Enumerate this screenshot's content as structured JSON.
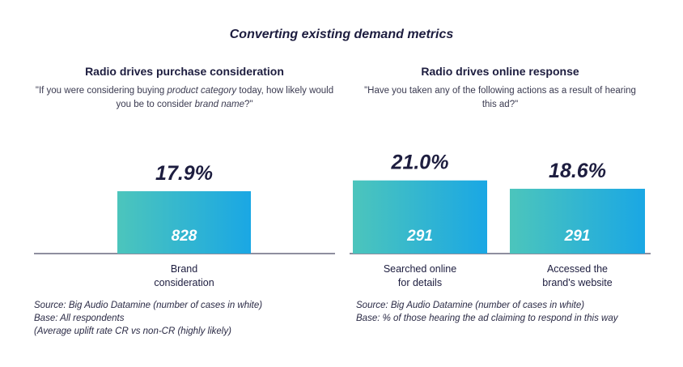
{
  "title": "Converting existing demand metrics",
  "colors": {
    "bar_start": "#4cc5bc",
    "bar_end": "#1aa7e4",
    "text_dark": "#1d1d3f"
  },
  "left_panel": {
    "title": "Radio drives purchase consideration",
    "question_parts": [
      {
        "text": "\"If you were considering buying ",
        "italic": false
      },
      {
        "text": "product category",
        "italic": true
      },
      {
        "text": " today, how likely would you be to consider ",
        "italic": false
      },
      {
        "text": "brand name",
        "italic": true
      },
      {
        "text": "?\"",
        "italic": false
      }
    ],
    "footnotes": [
      "Source: Big Audio Datamine (number of cases in white)",
      "Base: All respondents",
      "(Average uplift rate CR vs non-CR (highly likely)"
    ]
  },
  "right_panel": {
    "title": "Radio drives online response",
    "question": "\"Have you taken any of the following actions as a result of hearing this ad?\"",
    "footnotes": [
      "Source: Big Audio Datamine (number of cases in white)",
      "Base: % of those hearing the ad claiming to respond in this way"
    ]
  },
  "chart_data": [
    {
      "type": "bar",
      "title": "Radio drives purchase consideration",
      "categories": [
        "Brand consideration"
      ],
      "category_lines": [
        [
          "Brand",
          "consideration"
        ]
      ],
      "values": [
        17.9
      ],
      "value_labels": [
        "17.9%"
      ],
      "cases": [
        "828"
      ],
      "ylim": [
        0,
        25
      ],
      "grid": false,
      "legend": "none"
    },
    {
      "type": "bar",
      "title": "Radio drives online response",
      "categories": [
        "Searched online for details",
        "Accessed the brand's website"
      ],
      "category_lines": [
        [
          "Searched online",
          "for details"
        ],
        [
          "Accessed the",
          "brand's website"
        ]
      ],
      "values": [
        21.0,
        18.6
      ],
      "value_labels": [
        "21.0%",
        "18.6%"
      ],
      "cases": [
        "291",
        "291"
      ],
      "ylim": [
        0,
        25
      ],
      "grid": false,
      "legend": "none"
    }
  ]
}
